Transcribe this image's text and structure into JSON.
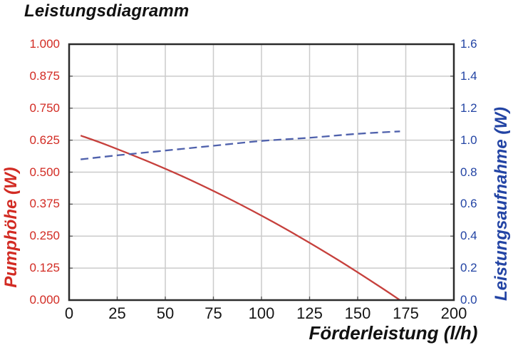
{
  "title": "Leistungsdiagramm",
  "colors": {
    "left_axis_text": "#d22b23",
    "left_series_line": "#c6403c",
    "right_axis_text": "#2344a4",
    "right_series_line": "#4f61ac",
    "grid": "#cbcbcb",
    "frame": "#2b2b2b",
    "x_text": "#161616"
  },
  "chart_data": {
    "type": "line",
    "title": "Leistungsdiagramm",
    "xlabel": "Förderleistung (l/h)",
    "xlim": [
      0,
      200
    ],
    "x_ticks": [
      0,
      25,
      50,
      75,
      100,
      125,
      150,
      175,
      200
    ],
    "x_tick_labels": [
      "0",
      "25",
      "50",
      "75",
      "100",
      "125",
      "150",
      "175",
      "200"
    ],
    "grid": true,
    "legend": "none",
    "axes": {
      "left": {
        "label": "Pumphöhe (W)",
        "lim": [
          0,
          1.0
        ],
        "tick_labels": [
          "1.000",
          "0.875",
          "0.750",
          "0.625",
          "0.500",
          "0.375",
          "0.250",
          "0.125",
          "0.000"
        ],
        "tick_values": [
          1.0,
          0.875,
          0.75,
          0.625,
          0.5,
          0.375,
          0.25,
          0.125,
          0.0
        ]
      },
      "right": {
        "label": "Leistungsaufnahme (W)",
        "lim": [
          0,
          1.6
        ],
        "tick_labels": [
          "1.6",
          "1.4",
          "1.2",
          "1.0",
          "0.8",
          "0.6",
          "0.4",
          "0.2",
          "0.0"
        ],
        "tick_values": [
          1.6,
          1.4,
          1.2,
          1.0,
          0.8,
          0.6,
          0.4,
          0.2,
          0.0
        ]
      }
    },
    "series": [
      {
        "name": "Pumphöhe",
        "axis": "left",
        "style": "solid",
        "points": [
          [
            6,
            0.643
          ],
          [
            20,
            0.605
          ],
          [
            40,
            0.545
          ],
          [
            60,
            0.48
          ],
          [
            80,
            0.408
          ],
          [
            100,
            0.33
          ],
          [
            120,
            0.246
          ],
          [
            140,
            0.156
          ],
          [
            160,
            0.06
          ],
          [
            172,
            0.0
          ]
        ]
      },
      {
        "name": "Leistungsaufnahme",
        "axis": "right",
        "style": "dashed",
        "points": [
          [
            6,
            0.88
          ],
          [
            25,
            0.905
          ],
          [
            50,
            0.935
          ],
          [
            75,
            0.965
          ],
          [
            100,
            0.995
          ],
          [
            125,
            1.015
          ],
          [
            150,
            1.04
          ],
          [
            172,
            1.055
          ]
        ]
      }
    ]
  }
}
